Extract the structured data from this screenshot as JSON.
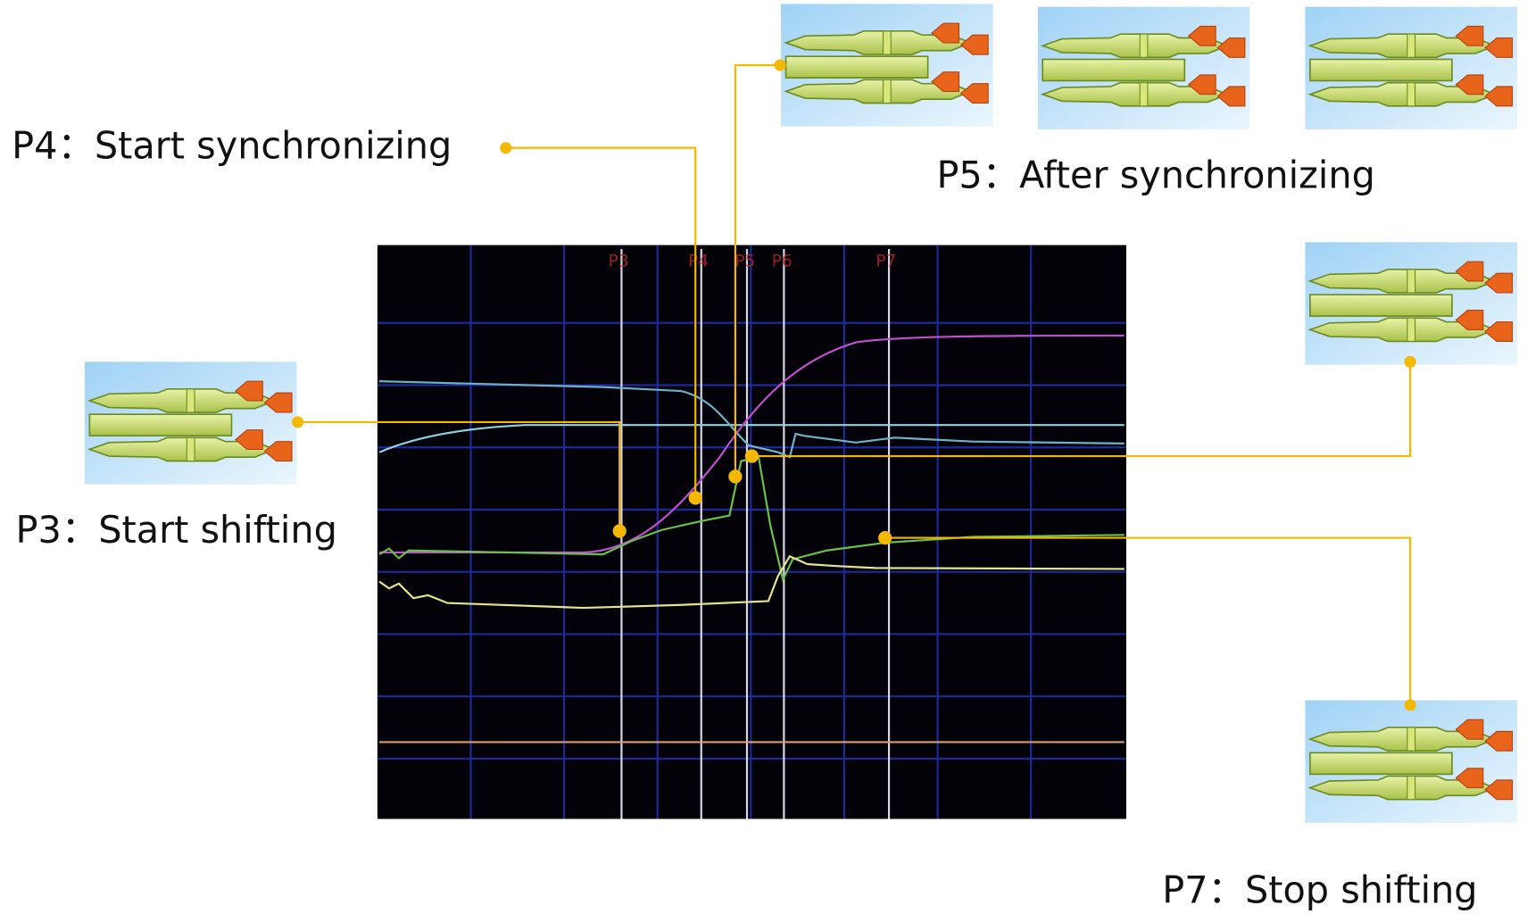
{
  "callouts": [
    {
      "label": "P4：Start synchronizing"
    },
    {
      "label": "P5：After synchronizing"
    },
    {
      "label": "P3：Start shifting"
    },
    {
      "label": "P7：Stop shifting"
    }
  ],
  "scope": {
    "markers": [
      "P3",
      "P4",
      "P5",
      "P6",
      "P7"
    ]
  }
}
